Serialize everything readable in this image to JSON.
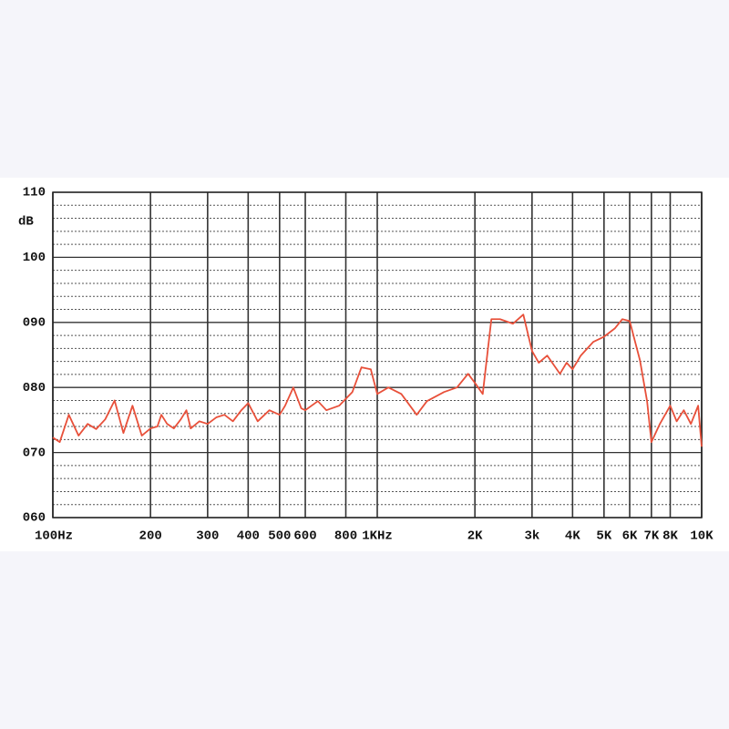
{
  "chart_data": {
    "type": "line",
    "ylabel": "dB",
    "xscale": "log",
    "grid": true,
    "color": "#e8503a",
    "xlim": [
      100,
      10000
    ],
    "ylim": [
      60,
      110
    ],
    "xticks": [
      {
        "value": 100,
        "label": "100Hz"
      },
      200,
      300,
      400,
      500,
      600,
      800,
      {
        "value": 1000,
        "label": "1KHz"
      },
      {
        "value": 2000,
        "label": "2K"
      },
      {
        "value": 3000,
        "label": "3k"
      },
      {
        "value": 4000,
        "label": "4K"
      },
      {
        "value": 5000,
        "label": "5K"
      },
      {
        "value": 6000,
        "label": "6K"
      },
      {
        "value": 7000,
        "label": "7K"
      },
      {
        "value": 8000,
        "label": "8K"
      },
      {
        "value": 10000,
        "label": "10K"
      }
    ],
    "yticks": [
      {
        "value": 60,
        "label": "060"
      },
      {
        "value": 70,
        "label": "070"
      },
      {
        "value": 80,
        "label": "080"
      },
      {
        "value": 90,
        "label": "090"
      },
      100,
      110
    ],
    "x": [
      100,
      105,
      112,
      120,
      128,
      136,
      145,
      155,
      165,
      176,
      188,
      200,
      210,
      216,
      225,
      236,
      248,
      258,
      266,
      283,
      300,
      319,
      338,
      359,
      381,
      400,
      428,
      465,
      500,
      520,
      551,
      583,
      600,
      656,
      697,
      763,
      838,
      894,
      955,
      1000,
      1082,
      1186,
      1323,
      1423,
      1607,
      1761,
      1905,
      2000,
      2114,
      2248,
      2390,
      2621,
      2820,
      3000,
      3147,
      3342,
      3658,
      3834,
      4000,
      4240,
      4632,
      5000,
      5405,
      5695,
      6000,
      6452,
      6788,
      7000,
      7434,
      8000,
      8374,
      8809,
      9264,
      9754,
      10000
    ],
    "values": [
      72.3,
      71.6,
      75.8,
      72.6,
      74.4,
      73.6,
      75.1,
      78,
      73,
      77.2,
      72.6,
      73.7,
      74,
      75.8,
      74.4,
      73.7,
      75.1,
      76.5,
      73.7,
      74.8,
      74.4,
      75.4,
      75.8,
      74.8,
      76.5,
      77.6,
      74.8,
      76.5,
      75.8,
      77.2,
      80,
      76.8,
      76.5,
      77.9,
      76.5,
      77.2,
      79.3,
      83.1,
      82.8,
      79,
      80,
      79,
      75.8,
      77.9,
      79.3,
      80,
      82.1,
      80.7,
      79,
      90.5,
      90.5,
      89.8,
      91.2,
      85.6,
      83.8,
      84.9,
      82.1,
      83.8,
      82.8,
      84.9,
      87,
      87.8,
      89.1,
      90.5,
      90.2,
      84.2,
      77.9,
      71.6,
      74.4,
      77.2,
      74.8,
      76.5,
      74.4,
      77.2,
      70.9
    ]
  }
}
